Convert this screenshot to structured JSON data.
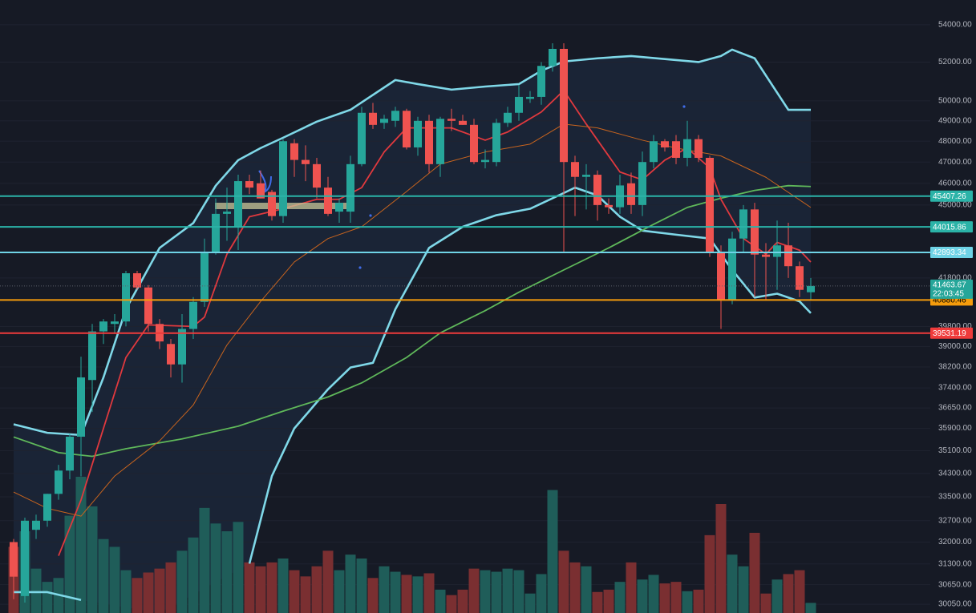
{
  "chart_data": {
    "type": "candlestick",
    "log_scale": true,
    "grid": true,
    "ylim": [
      29785,
      55370
    ],
    "yticks": [
      {
        "value": 54000,
        "label": "54000.00"
      },
      {
        "value": 52000,
        "label": "52000.00"
      },
      {
        "value": 50000,
        "label": "50000.00"
      },
      {
        "value": 49000,
        "label": "49000.00"
      },
      {
        "value": 48000,
        "label": "48000.00"
      },
      {
        "value": 47000,
        "label": "47000.00"
      },
      {
        "value": 46000,
        "label": "46000.00"
      },
      {
        "value": 45000,
        "label": "45000.00"
      },
      {
        "value": 41800,
        "label": "41800.00"
      },
      {
        "value": 39800,
        "label": "39800.00"
      },
      {
        "value": 39000,
        "label": "39000.00"
      },
      {
        "value": 38200,
        "label": "38200.00"
      },
      {
        "value": 37400,
        "label": "37400.00"
      },
      {
        "value": 36650,
        "label": "36650.00"
      },
      {
        "value": 35900,
        "label": "35900.00"
      },
      {
        "value": 35100,
        "label": "35100.00"
      },
      {
        "value": 34300,
        "label": "34300.00"
      },
      {
        "value": 33500,
        "label": "33500.00"
      },
      {
        "value": 32700,
        "label": "32700.00"
      },
      {
        "value": 32000,
        "label": "32000.00"
      },
      {
        "value": 31300,
        "label": "31300.00"
      },
      {
        "value": 30650,
        "label": "30650.00"
      },
      {
        "value": 30050,
        "label": "30050.00"
      }
    ],
    "up_color": "#26a69a",
    "down_color": "#ef5350",
    "volume_up_color": "#1f5d59",
    "volume_down_color": "#7a2f31",
    "open": [
      32000,
      30300,
      32400,
      32700,
      33600,
      34400,
      35600,
      37700,
      39600,
      39900,
      40000,
      42000,
      41400,
      39900,
      39100,
      38300,
      39700,
      40800,
      42900,
      44600,
      44000,
      46100,
      46000,
      45600,
      44500,
      47900,
      47100,
      46900,
      45800,
      44700,
      44700,
      46900,
      49400,
      48900,
      49000,
      49500,
      47700,
      49000,
      46900,
      49100,
      49000,
      48800,
      47000,
      47000,
      48900,
      49400,
      50100,
      50200,
      51800,
      52700,
      47000,
      46300,
      46400,
      45000,
      44900,
      46000,
      45000,
      47000,
      48000,
      48000,
      47200,
      48100,
      47200,
      42900,
      40900,
      43500,
      44800,
      42800,
      42700,
      43200,
      42300,
      41200
    ],
    "high": [
      32100,
      32800,
      32900,
      33600,
      34600,
      35700,
      38600,
      39900,
      40100,
      40300,
      42100,
      42100,
      41500,
      40100,
      39300,
      40300,
      41000,
      43500,
      45300,
      45800,
      46400,
      46400,
      46600,
      45700,
      48100,
      48100,
      47800,
      47200,
      46300,
      45300,
      47300,
      49700,
      49900,
      49300,
      49700,
      49600,
      49200,
      49300,
      49200,
      49600,
      49300,
      49100,
      47600,
      49100,
      49700,
      50800,
      50500,
      52000,
      53000,
      53000,
      47300,
      46900,
      46600,
      45300,
      46400,
      46500,
      47500,
      48300,
      48100,
      48300,
      49000,
      48300,
      47300,
      43200,
      43800,
      45000,
      45100,
      43300,
      44300,
      44200,
      42500,
      41800
    ],
    "low": [
      30200,
      30100,
      32100,
      32500,
      33400,
      34100,
      34200,
      36500,
      39100,
      39500,
      39800,
      41300,
      39600,
      38900,
      37800,
      37600,
      39300,
      40600,
      42800,
      43400,
      43000,
      45500,
      45300,
      44300,
      44200,
      46300,
      46100,
      45300,
      44500,
      44200,
      44200,
      46800,
      48600,
      48600,
      48700,
      47600,
      47300,
      46500,
      46300,
      48500,
      48800,
      46900,
      46700,
      46800,
      48700,
      49000,
      49900,
      49800,
      51500,
      42900,
      44500,
      44800,
      44300,
      44600,
      44600,
      44600,
      44500,
      46700,
      47500,
      46900,
      46800,
      47000,
      42700,
      39700,
      40700,
      42900,
      41000,
      40900,
      41300,
      41800,
      41000,
      40900
    ],
    "close": [
      30900,
      32700,
      32700,
      33600,
      34400,
      35600,
      37800,
      39600,
      40000,
      40000,
      42000,
      41400,
      39900,
      39200,
      38300,
      39700,
      40800,
      42900,
      44600,
      44700,
      46100,
      45800,
      45300,
      44500,
      48000,
      47100,
      46900,
      45800,
      44600,
      45100,
      46900,
      49400,
      48800,
      49100,
      49500,
      47700,
      49000,
      46900,
      49100,
      49000,
      48800,
      47000,
      47100,
      48900,
      49400,
      50200,
      50200,
      51800,
      52700,
      47000,
      46300,
      46400,
      45000,
      44900,
      45900,
      45000,
      47000,
      48000,
      47700,
      47200,
      48100,
      47200,
      42900,
      40900,
      43500,
      44800,
      42800,
      42700,
      43200,
      42300,
      41300,
      41463.67
    ],
    "volume": [
      85,
      105,
      57,
      40,
      45,
      125,
      175,
      137,
      95,
      85,
      55,
      45,
      52,
      57,
      65,
      80,
      97,
      135,
      115,
      105,
      117,
      65,
      60,
      65,
      70,
      55,
      47,
      60,
      80,
      55,
      75,
      70,
      45,
      60,
      53,
      49,
      47,
      51,
      30,
      23,
      30,
      57,
      55,
      53,
      57,
      55,
      25,
      50,
      158,
      80,
      65,
      60,
      27,
      30,
      40,
      65,
      43,
      49,
      38,
      40,
      28,
      30,
      100,
      140,
      75,
      60,
      103,
      25,
      43,
      50,
      55,
      13
    ],
    "lines": [
      {
        "color": "#7fd8e8",
        "x": [
          0,
          3,
          6,
          8,
          10,
          13,
          16,
          18,
          20,
          22,
          24,
          27,
          30,
          34,
          36,
          39,
          42,
          45,
          47,
          49,
          52,
          55,
          58,
          61,
          63,
          64,
          66,
          69,
          71
        ],
        "values": [
          36050,
          35740,
          35660,
          37800,
          40500,
          43090,
          44190,
          45890,
          47090,
          47670,
          48170,
          48960,
          49550,
          51065,
          50855,
          50570,
          50730,
          50855,
          51550,
          52030,
          52200,
          52320,
          52160,
          52000,
          52320,
          52660,
          52200,
          49550,
          49550
        ]
      },
      {
        "color": "#7fd8e8",
        "x": [
          0,
          3,
          6,
          13,
          21,
          23,
          25,
          28,
          30,
          32,
          34,
          37,
          40,
          43,
          46,
          49,
          50,
          52,
          54,
          56,
          59,
          62,
          64,
          66,
          68,
          70,
          71
        ],
        "values": [
          30420,
          30420,
          30180,
          null,
          31310,
          34210,
          35900,
          37350,
          38180,
          38360,
          40500,
          43090,
          44020,
          44540,
          44830,
          45550,
          45800,
          45440,
          44470,
          43850,
          43670,
          43500,
          42140,
          40980,
          41140,
          40820,
          40340
        ]
      },
      {
        "color": "#5fb85a",
        "x": [
          0,
          4,
          7,
          10,
          15,
          20,
          24,
          28,
          31,
          35,
          38,
          42,
          45,
          49,
          53,
          57,
          60,
          63,
          66,
          69,
          71
        ],
        "values": [
          35590,
          35030,
          34900,
          35170,
          35520,
          35980,
          36530,
          37060,
          37590,
          38570,
          39540,
          40440,
          41200,
          42140,
          43090,
          44130,
          44890,
          45310,
          45670,
          45890,
          45850
        ]
      },
      {
        "color": "#e0393e",
        "x": [
          4,
          6,
          8,
          10,
          12,
          16,
          17,
          19,
          21,
          24,
          27,
          29,
          31,
          33,
          35,
          39,
          42,
          44,
          47,
          49,
          51,
          54,
          56,
          58,
          60,
          62,
          63,
          65,
          67,
          68,
          70,
          71
        ],
        "values": [
          31560,
          33390,
          35900,
          38570,
          39860,
          39800,
          40180,
          42820,
          44470,
          44830,
          45260,
          45260,
          45800,
          47480,
          48650,
          48650,
          48050,
          48450,
          49440,
          50530,
          48840,
          46530,
          46160,
          47090,
          47670,
          46720,
          45260,
          43500,
          42820,
          43330,
          42990,
          42480
        ]
      },
      {
        "color": "#c8641e",
        "x": [
          0,
          3,
          6,
          9,
          13,
          16,
          19,
          22,
          25,
          28,
          31,
          35,
          38,
          42,
          46,
          49,
          52,
          56,
          59,
          63,
          67,
          71
        ],
        "values": [
          33660,
          33110,
          32850,
          34210,
          35450,
          36760,
          39060,
          40820,
          42480,
          43500,
          44020,
          45620,
          46900,
          47480,
          47860,
          48840,
          48650,
          48050,
          47670,
          47290,
          46280,
          44890
        ]
      }
    ],
    "levels": [
      {
        "value": 45407.26,
        "color": "#2bb3a8"
      },
      {
        "value": 44015.86,
        "color": "#2bb3a8"
      },
      {
        "value": 42893.34,
        "color": "#6fd3e6"
      },
      {
        "value": 40880.46,
        "color": "#f59c0c"
      },
      {
        "value": 39531.19,
        "color": "#ef3b3b"
      }
    ],
    "last_price": {
      "value": 41463.67,
      "countdown": "22:03:45",
      "color": "#26a69a"
    }
  }
}
